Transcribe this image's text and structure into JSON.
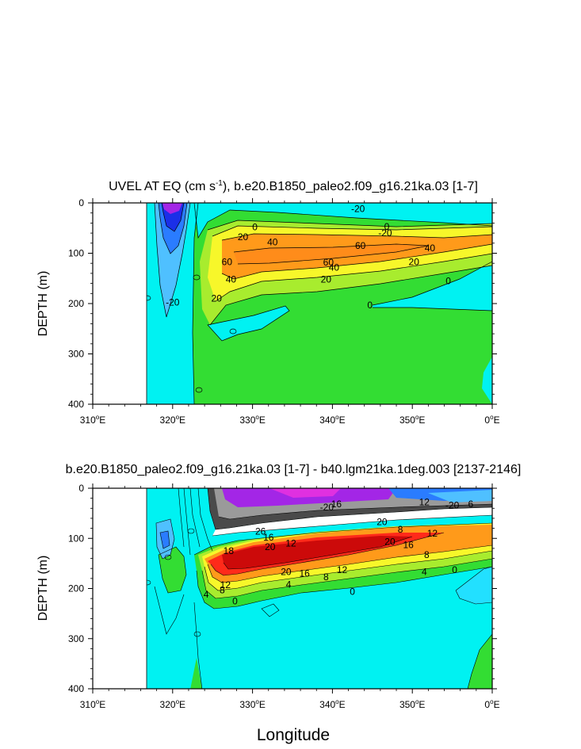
{
  "chart_data": [
    {
      "type": "contour",
      "title": "UVEL AT EQ (cm s",
      "title_sup": "-1",
      "title_rest": "), b.e20.B1850_paleo2.f09_g16.21ka.03 [1-7]",
      "ylabel": "DEPTH (m)",
      "xlabel": "",
      "xlim": [
        310,
        360
      ],
      "ylim": [
        0,
        400
      ],
      "xticks": [
        "310",
        "320",
        "330",
        "340",
        "350",
        "0"
      ],
      "yticks": [
        "0",
        "100",
        "200",
        "300",
        "400"
      ],
      "contour_labels": [
        {
          "text": "-20",
          "lon": 343.2,
          "depth": 12
        },
        {
          "text": "0",
          "lon": 330.3,
          "depth": 48
        },
        {
          "text": "0",
          "lon": 346.8,
          "depth": 47
        },
        {
          "text": "-20",
          "lon": 346.6,
          "depth": 60
        },
        {
          "text": "20",
          "lon": 328.8,
          "depth": 68
        },
        {
          "text": "40",
          "lon": 332.5,
          "depth": 78
        },
        {
          "text": "60",
          "lon": 343.5,
          "depth": 85
        },
        {
          "text": "40",
          "lon": 352.2,
          "depth": 90
        },
        {
          "text": "60",
          "lon": 326.8,
          "depth": 117
        },
        {
          "text": "60",
          "lon": 339.5,
          "depth": 118
        },
        {
          "text": "40",
          "lon": 340.2,
          "depth": 128
        },
        {
          "text": "20",
          "lon": 350.2,
          "depth": 117
        },
        {
          "text": "40",
          "lon": 327.3,
          "depth": 152
        },
        {
          "text": "20",
          "lon": 339.2,
          "depth": 152
        },
        {
          "text": "0",
          "lon": 354.5,
          "depth": 155
        },
        {
          "text": "20",
          "lon": 325.5,
          "depth": 190
        },
        {
          "text": "-20",
          "lon": 320.0,
          "depth": 198
        },
        {
          "text": "0",
          "lon": 344.7,
          "depth": 203
        }
      ]
    },
    {
      "type": "contour",
      "title": "b.e20.B1850_paleo2.f09_g16.21ka.03 [1-7] - b40.lgm21ka.1deg.003 [2137-2146]",
      "ylabel": "DEPTH (m)",
      "xlabel": "Longitude",
      "xlim": [
        310,
        360
      ],
      "ylim": [
        0,
        400
      ],
      "xticks": [
        "310",
        "320",
        "330",
        "340",
        "350",
        "0"
      ],
      "yticks": [
        "0",
        "100",
        "200",
        "300",
        "400"
      ],
      "contour_labels": [
        {
          "text": "-20",
          "lon": 339.3,
          "depth": 38
        },
        {
          "text": "16",
          "lon": 340.5,
          "depth": 32
        },
        {
          "text": "12",
          "lon": 351.5,
          "depth": 28
        },
        {
          "text": "-20",
          "lon": 355.0,
          "depth": 34
        },
        {
          "text": "6",
          "lon": 357.3,
          "depth": 32
        },
        {
          "text": "26",
          "lon": 331.0,
          "depth": 86
        },
        {
          "text": "20",
          "lon": 346.2,
          "depth": 67
        },
        {
          "text": "16",
          "lon": 332.0,
          "depth": 98
        },
        {
          "text": "12",
          "lon": 334.8,
          "depth": 110
        },
        {
          "text": "8",
          "lon": 348.5,
          "depth": 82
        },
        {
          "text": "12",
          "lon": 352.5,
          "depth": 90
        },
        {
          "text": "18",
          "lon": 327.0,
          "depth": 125
        },
        {
          "text": "20",
          "lon": 332.2,
          "depth": 117
        },
        {
          "text": "20",
          "lon": 347.2,
          "depth": 107
        },
        {
          "text": "16",
          "lon": 349.5,
          "depth": 113
        },
        {
          "text": "8",
          "lon": 351.8,
          "depth": 133
        },
        {
          "text": "20",
          "lon": 334.2,
          "depth": 167
        },
        {
          "text": "16",
          "lon": 336.5,
          "depth": 170
        },
        {
          "text": "12",
          "lon": 341.2,
          "depth": 163
        },
        {
          "text": "8",
          "lon": 339.2,
          "depth": 177
        },
        {
          "text": "4",
          "lon": 351.5,
          "depth": 167
        },
        {
          "text": "0",
          "lon": 355.3,
          "depth": 163
        },
        {
          "text": "12",
          "lon": 326.6,
          "depth": 193
        },
        {
          "text": "8",
          "lon": 326.2,
          "depth": 203
        },
        {
          "text": "4",
          "lon": 334.5,
          "depth": 192
        },
        {
          "text": "0",
          "lon": 342.5,
          "depth": 206
        },
        {
          "text": "4",
          "lon": 324.2,
          "depth": 212
        },
        {
          "text": "0",
          "lon": 327.8,
          "depth": 225
        }
      ]
    }
  ]
}
